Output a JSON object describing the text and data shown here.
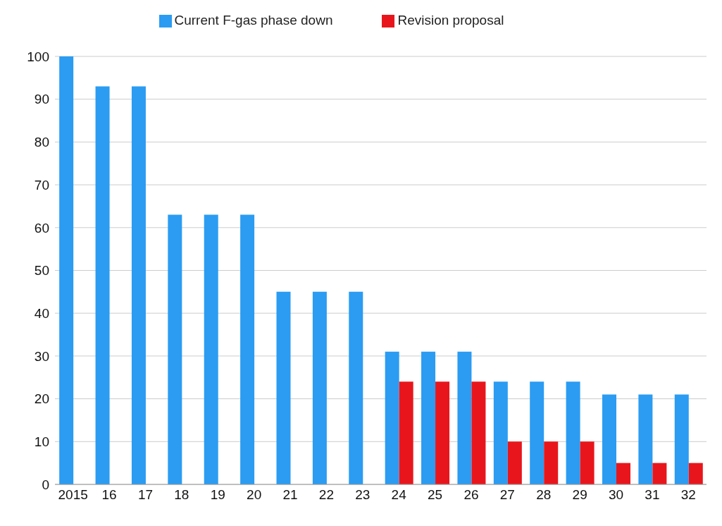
{
  "chart_data": {
    "type": "bar",
    "categories": [
      "2015",
      "16",
      "17",
      "18",
      "19",
      "20",
      "21",
      "22",
      "23",
      "24",
      "25",
      "26",
      "27",
      "28",
      "29",
      "30",
      "31",
      "32"
    ],
    "series": [
      {
        "name": "Current F-gas phase down",
        "color": "#2b9cf2",
        "values": [
          100,
          93,
          93,
          63,
          63,
          63,
          45,
          45,
          45,
          31,
          31,
          31,
          24,
          24,
          24,
          21,
          21,
          21
        ]
      },
      {
        "name": "Revision proposal",
        "color": "#e8161c",
        "values": [
          null,
          null,
          null,
          null,
          null,
          null,
          null,
          null,
          null,
          24,
          24,
          24,
          10,
          10,
          10,
          5,
          5,
          5
        ]
      }
    ],
    "ylim": [
      0,
      100
    ],
    "yticks": [
      0,
      10,
      20,
      30,
      40,
      50,
      60,
      70,
      80,
      90,
      100
    ],
    "grid": "y",
    "legend": "top"
  }
}
